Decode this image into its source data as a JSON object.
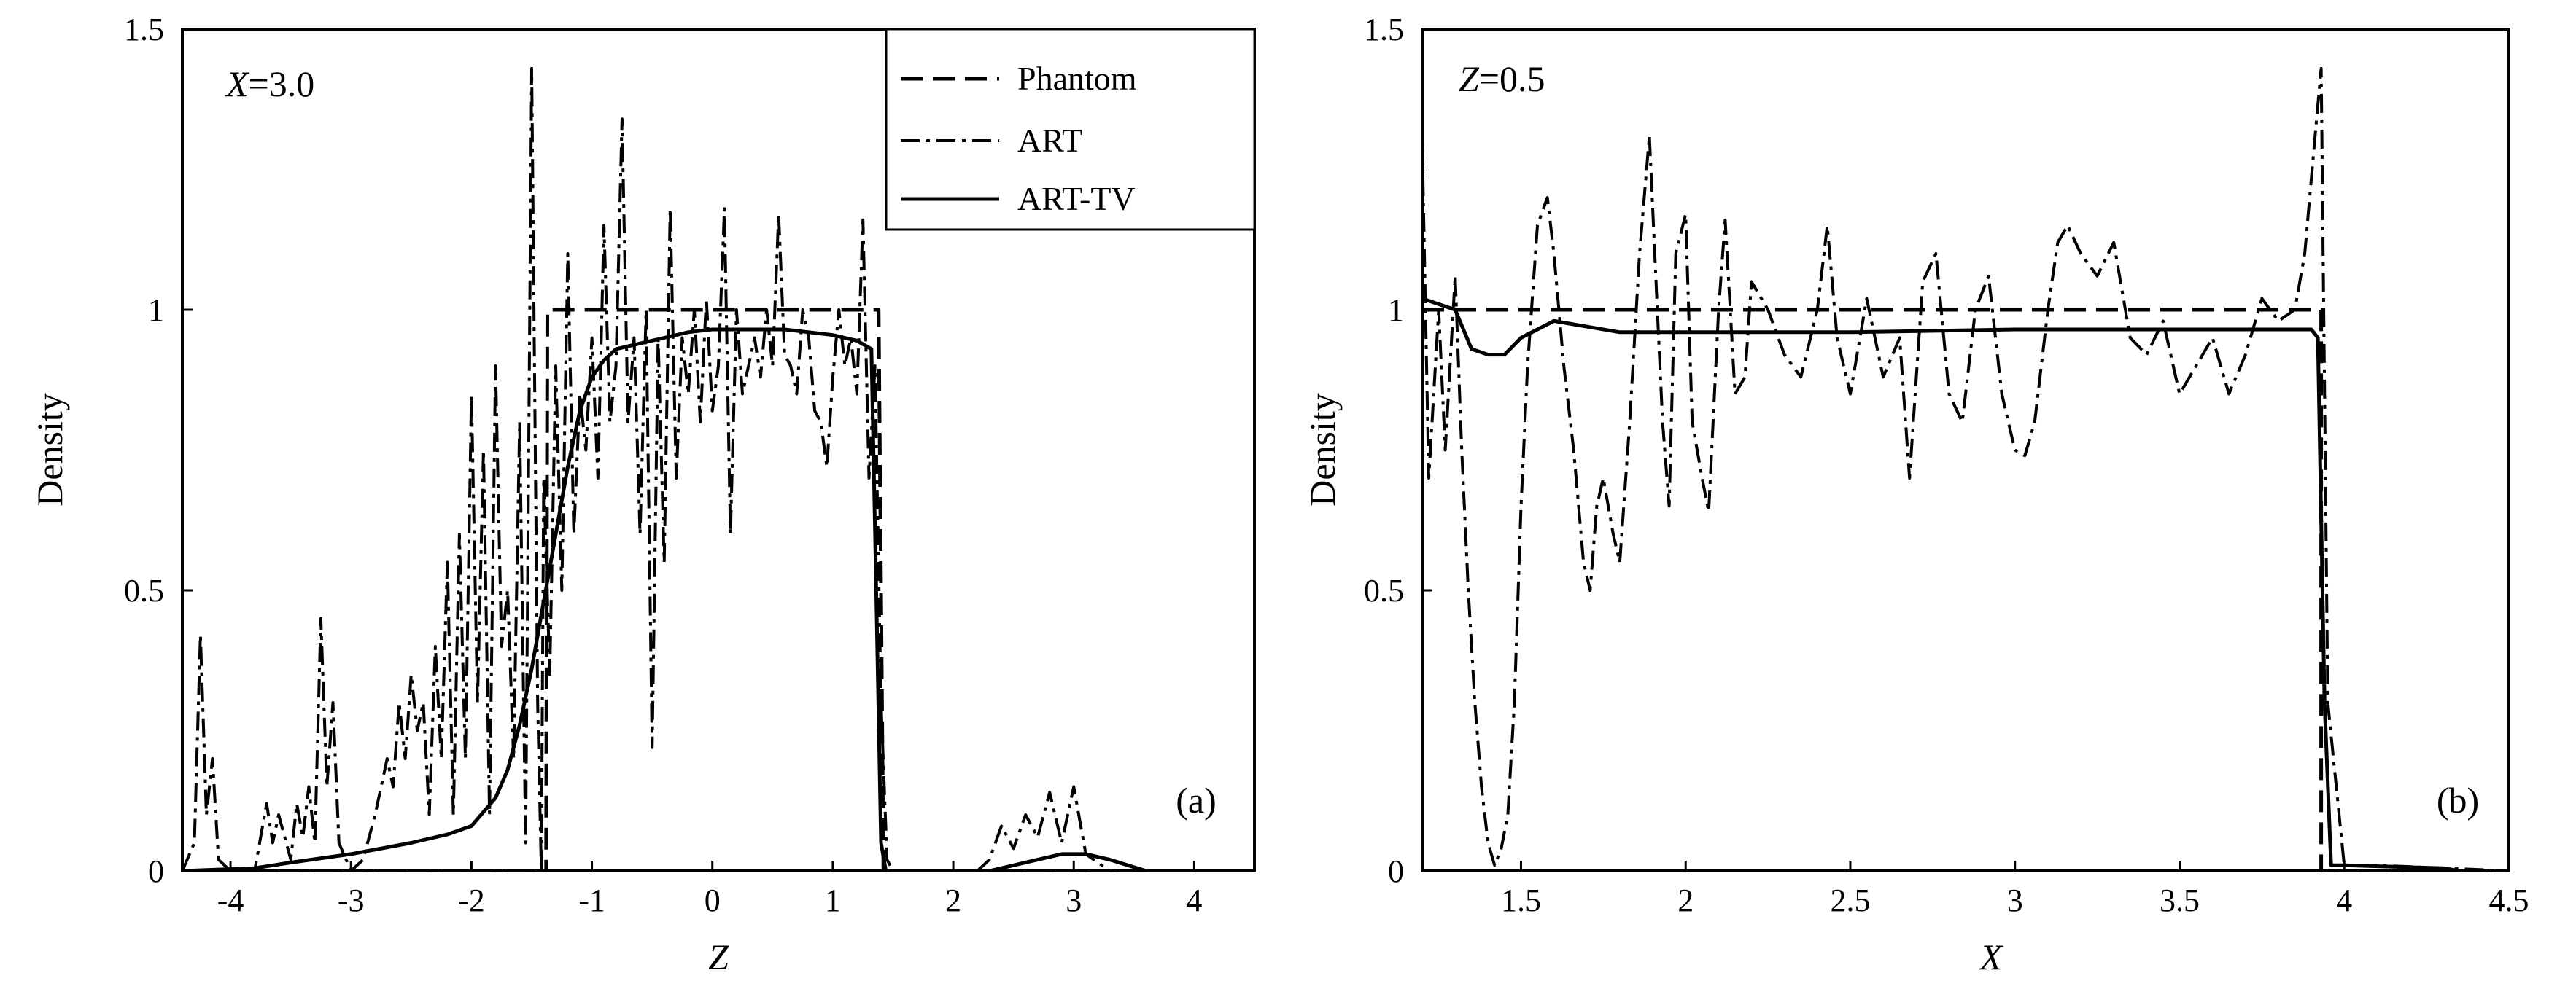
{
  "chart_data": [
    {
      "type": "line",
      "panel_tag": "(a)",
      "annotation": {
        "var": "X",
        "rest": "=3.0"
      },
      "xlabel": "Z",
      "ylabel": "Density",
      "xlim": [
        -4.4,
        4.5
      ],
      "ylim": [
        0,
        1.5
      ],
      "xticks": [
        -4,
        -3,
        -2,
        -1,
        0,
        1,
        2,
        3,
        4
      ],
      "xtick_labels": [
        "-4",
        "-3",
        "-2",
        "-1",
        "0",
        "1",
        "2",
        "3",
        "4"
      ],
      "yticks": [
        0,
        0.5,
        1,
        1.5
      ],
      "ytick_labels": [
        "0",
        "0.5",
        "1",
        "1.5"
      ],
      "legend": {
        "position": "top-right",
        "entries": [
          "Phantom",
          "ART",
          "ART-TV"
        ]
      },
      "series": [
        {
          "name": "Phantom",
          "style": "dashed",
          "x": [
            -4.4,
            -1.38,
            -1.37,
            1.37,
            1.38,
            1.42,
            4.5
          ],
          "y": [
            0,
            0,
            1.0,
            1.0,
            1.0,
            0,
            0
          ]
        },
        {
          "name": "ART",
          "style": "dashdot",
          "x": [
            -4.4,
            -4.3,
            -4.25,
            -4.2,
            -4.15,
            -4.1,
            -4.0,
            -3.8,
            -3.7,
            -3.65,
            -3.6,
            -3.5,
            -3.45,
            -3.4,
            -3.35,
            -3.3,
            -3.25,
            -3.2,
            -3.15,
            -3.1,
            -3.0,
            -2.9,
            -2.8,
            -2.7,
            -2.65,
            -2.6,
            -2.55,
            -2.5,
            -2.45,
            -2.4,
            -2.35,
            -2.3,
            -2.25,
            -2.2,
            -2.15,
            -2.1,
            -2.05,
            -2.0,
            -1.95,
            -1.9,
            -1.85,
            -1.8,
            -1.75,
            -1.7,
            -1.65,
            -1.6,
            -1.55,
            -1.5,
            -1.45,
            -1.42,
            -1.4,
            -1.35,
            -1.3,
            -1.25,
            -1.2,
            -1.15,
            -1.1,
            -1.05,
            -1.0,
            -0.95,
            -0.9,
            -0.85,
            -0.8,
            -0.75,
            -0.7,
            -0.65,
            -0.6,
            -0.55,
            -0.5,
            -0.45,
            -0.4,
            -0.35,
            -0.3,
            -0.25,
            -0.2,
            -0.15,
            -0.1,
            -0.05,
            0.0,
            0.05,
            0.1,
            0.15,
            0.2,
            0.25,
            0.3,
            0.35,
            0.4,
            0.45,
            0.5,
            0.55,
            0.6,
            0.65,
            0.7,
            0.75,
            0.8,
            0.85,
            0.9,
            0.95,
            1.0,
            1.05,
            1.1,
            1.15,
            1.2,
            1.25,
            1.3,
            1.35,
            1.4,
            1.45,
            1.5,
            2.2,
            2.3,
            2.4,
            2.5,
            2.6,
            2.7,
            2.8,
            2.9,
            3.0,
            3.1,
            3.3,
            4.5
          ],
          "y": [
            0,
            0.05,
            0.42,
            0.1,
            0.2,
            0.02,
            0.0,
            0.0,
            0.12,
            0.05,
            0.1,
            0.02,
            0.12,
            0.06,
            0.15,
            0.05,
            0.45,
            0.15,
            0.3,
            0.05,
            0.0,
            0.02,
            0.1,
            0.2,
            0.15,
            0.3,
            0.2,
            0.35,
            0.25,
            0.3,
            0.1,
            0.4,
            0.2,
            0.55,
            0.1,
            0.6,
            0.2,
            0.85,
            0.3,
            0.75,
            0.1,
            0.9,
            0.4,
            0.5,
            0.2,
            0.8,
            0.05,
            1.43,
            0.3,
            0.0,
            0.7,
            0.35,
            0.9,
            0.5,
            1.1,
            0.6,
            0.85,
            0.75,
            0.95,
            0.7,
            1.15,
            0.8,
            0.9,
            1.34,
            0.8,
            0.95,
            0.6,
            1.0,
            0.22,
            0.95,
            0.55,
            1.18,
            0.7,
            0.95,
            0.85,
            1.0,
            0.8,
            1.02,
            0.82,
            0.9,
            1.18,
            0.6,
            1.0,
            0.85,
            0.9,
            0.95,
            0.88,
            1.0,
            0.9,
            1.17,
            0.92,
            0.9,
            0.85,
            1.0,
            0.95,
            0.82,
            0.8,
            0.72,
            0.88,
            1.0,
            0.9,
            0.95,
            0.85,
            1.16,
            0.7,
            0.9,
            0.3,
            0.02,
            0.0,
            0.0,
            0.02,
            0.08,
            0.04,
            0.1,
            0.06,
            0.14,
            0.05,
            0.15,
            0.03,
            0.0,
            0.0
          ]
        },
        {
          "name": "ART-TV",
          "style": "solid",
          "x": [
            -4.4,
            -3.8,
            -3.5,
            -3.0,
            -2.5,
            -2.2,
            -2.0,
            -1.8,
            -1.7,
            -1.6,
            -1.5,
            -1.4,
            -1.3,
            -1.2,
            -1.1,
            -1.0,
            -0.9,
            -0.8,
            -0.6,
            -0.4,
            -0.2,
            0.0,
            0.2,
            0.4,
            0.6,
            0.8,
            1.0,
            1.2,
            1.32,
            1.36,
            1.4,
            1.44,
            2.0,
            2.3,
            2.5,
            2.7,
            2.9,
            3.1,
            3.3,
            3.6,
            4.5
          ],
          "y": [
            0,
            0.005,
            0.015,
            0.03,
            0.05,
            0.065,
            0.08,
            0.13,
            0.18,
            0.26,
            0.36,
            0.48,
            0.6,
            0.72,
            0.82,
            0.88,
            0.91,
            0.93,
            0.94,
            0.95,
            0.96,
            0.965,
            0.965,
            0.965,
            0.965,
            0.96,
            0.955,
            0.945,
            0.93,
            0.5,
            0.05,
            0.0,
            0.0,
            0.0,
            0.01,
            0.02,
            0.03,
            0.03,
            0.02,
            0.0,
            0.0
          ]
        }
      ]
    },
    {
      "type": "line",
      "panel_tag": "(b)",
      "annotation": {
        "var": "Z",
        "rest": "=0.5"
      },
      "xlabel": "X",
      "ylabel": "Density",
      "xlim": [
        1.2,
        4.5
      ],
      "ylim": [
        0,
        1.5
      ],
      "xticks": [
        1.5,
        2,
        2.5,
        3,
        3.5,
        4,
        4.5
      ],
      "xtick_labels": [
        "1.5",
        "2",
        "2.5",
        "3",
        "3.5",
        "4",
        "4.5"
      ],
      "yticks": [
        0,
        0.5,
        1,
        1.5
      ],
      "ytick_labels": [
        "0",
        "0.5",
        "1",
        "1.5"
      ],
      "series": [
        {
          "name": "Phantom",
          "style": "dashed",
          "x": [
            1.2,
            3.93,
            3.93,
            4.5
          ],
          "y": [
            1.0,
            1.0,
            0,
            0
          ]
        },
        {
          "name": "ART",
          "style": "dashdot",
          "x": [
            1.2,
            1.22,
            1.25,
            1.27,
            1.3,
            1.32,
            1.34,
            1.36,
            1.38,
            1.4,
            1.42,
            1.44,
            1.46,
            1.48,
            1.5,
            1.52,
            1.55,
            1.58,
            1.6,
            1.63,
            1.66,
            1.69,
            1.71,
            1.73,
            1.75,
            1.78,
            1.8,
            1.83,
            1.86,
            1.89,
            1.91,
            1.93,
            1.95,
            1.97,
            2.0,
            2.02,
            2.05,
            2.07,
            2.1,
            2.12,
            2.15,
            2.18,
            2.2,
            2.25,
            2.3,
            2.35,
            2.4,
            2.43,
            2.46,
            2.5,
            2.55,
            2.6,
            2.65,
            2.68,
            2.72,
            2.76,
            2.8,
            2.84,
            2.88,
            2.92,
            2.96,
            3.0,
            3.03,
            3.06,
            3.1,
            3.13,
            3.16,
            3.2,
            3.25,
            3.3,
            3.35,
            3.4,
            3.45,
            3.5,
            3.55,
            3.6,
            3.65,
            3.7,
            3.75,
            3.8,
            3.85,
            3.88,
            3.91,
            3.93,
            3.95,
            4.0,
            4.1,
            4.5
          ],
          "y": [
            1.3,
            0.7,
            1.0,
            0.75,
            1.06,
            0.75,
            0.5,
            0.3,
            0.15,
            0.05,
            0.01,
            0.04,
            0.1,
            0.3,
            0.65,
            0.9,
            1.15,
            1.2,
            1.1,
            0.9,
            0.75,
            0.55,
            0.5,
            0.65,
            0.7,
            0.6,
            0.55,
            0.8,
            1.1,
            1.31,
            1.05,
            0.8,
            0.65,
            1.1,
            1.17,
            0.8,
            0.7,
            0.64,
            1.0,
            1.16,
            0.85,
            0.88,
            1.05,
            1.0,
            0.92,
            0.88,
            1.0,
            1.15,
            0.95,
            0.85,
            1.02,
            0.88,
            0.95,
            0.7,
            1.05,
            1.1,
            0.85,
            0.8,
            1.0,
            1.06,
            0.85,
            0.75,
            0.74,
            0.8,
            1.0,
            1.12,
            1.15,
            1.1,
            1.06,
            1.12,
            0.95,
            0.92,
            0.98,
            0.85,
            0.9,
            0.95,
            0.85,
            0.92,
            1.02,
            0.98,
            1.0,
            1.1,
            1.3,
            1.43,
            0.3,
            0.01,
            0.01,
            0.0
          ]
        },
        {
          "name": "ART-TV",
          "style": "solid",
          "x": [
            1.2,
            1.3,
            1.35,
            1.4,
            1.45,
            1.5,
            1.6,
            1.8,
            2.0,
            2.5,
            3.0,
            3.5,
            3.9,
            3.92,
            3.94,
            3.96,
            4.0,
            4.3,
            4.35
          ],
          "y": [
            1.02,
            1.0,
            0.93,
            0.92,
            0.92,
            0.95,
            0.98,
            0.96,
            0.96,
            0.96,
            0.965,
            0.965,
            0.965,
            0.95,
            0.3,
            0.01,
            0.01,
            0.005,
            0.0
          ]
        }
      ]
    }
  ]
}
